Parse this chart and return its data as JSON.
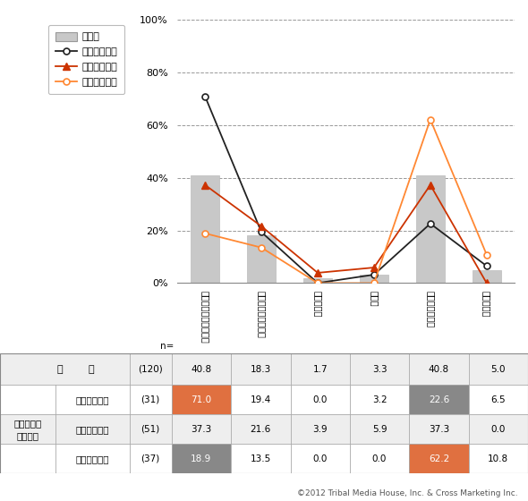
{
  "categories": [
    "投稿コンテンツの工夫",
    "キャンペーンの実施",
    "広告の出稿",
    "その他",
    "実施していない",
    "わからない"
  ],
  "bar_values": [
    40.8,
    18.3,
    1.7,
    3.3,
    40.8,
    5.0
  ],
  "bar_color": "#c8c8c8",
  "bar_edgecolor": "#aaaaaa",
  "line_joukyu": [
    71.0,
    19.4,
    0.0,
    3.2,
    22.6,
    6.5
  ],
  "line_chuki": [
    37.3,
    21.6,
    3.9,
    5.9,
    37.3,
    0.0
  ],
  "line_shoki": [
    18.9,
    13.5,
    0.0,
    0.0,
    62.2,
    10.8
  ],
  "joukyu_color": "#222222",
  "chuki_color": "#cc3300",
  "shoki_color": "#ff8833",
  "ylim": [
    0,
    100
  ],
  "yticks": [
    0,
    20,
    40,
    60,
    80,
    100
  ],
  "copyright": "©2012 Tribal Media House, Inc. & Cross Marketing Inc.",
  "legend_bar_label": "全　体",
  "legend_joukyu": "上級活用企業",
  "legend_chuki": "活用中期企業",
  "legend_shoki": "活用初期企業",
  "table_rows": [
    {
      "label_main": "全　体",
      "label_sub": "",
      "sample": "(120)",
      "values": [
        40.8,
        18.3,
        1.7,
        3.3,
        40.8,
        5.0
      ],
      "highlights": {}
    },
    {
      "label_main": "上級活用企業",
      "label_sub": "ソーシャル\n活用度別",
      "sample": "(31)",
      "values": [
        71.0,
        19.4,
        0.0,
        3.2,
        22.6,
        6.5
      ],
      "highlights": {
        "0": "#E07040",
        "4": "#888888"
      }
    },
    {
      "label_main": "活用中期企業",
      "label_sub": "",
      "sample": "(51)",
      "values": [
        37.3,
        21.6,
        3.9,
        5.9,
        37.3,
        0.0
      ],
      "highlights": {}
    },
    {
      "label_main": "活用初期企業",
      "label_sub": "",
      "sample": "(37)",
      "values": [
        18.9,
        13.5,
        0.0,
        0.0,
        62.2,
        10.8
      ],
      "highlights": {
        "0": "#888888",
        "4": "#E07040"
      }
    }
  ],
  "x_labels": [
    "投稿コンテンツの工夫",
    "キャンペーンの実施",
    "広告の出稿",
    "その他",
    "実施していない",
    "わからない"
  ]
}
